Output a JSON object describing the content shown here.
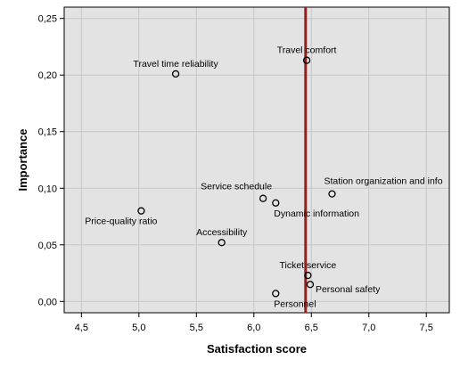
{
  "chart_data": {
    "type": "scatter",
    "title": "",
    "xlabel": "Satisfaction score",
    "ylabel": "Importance",
    "xlim": [
      4.35,
      7.7
    ],
    "ylim": [
      -0.01,
      0.26
    ],
    "x_ticks": [
      "4,5",
      "5,0",
      "5,5",
      "6,0",
      "6,5",
      "7,0",
      "7,5"
    ],
    "x_tick_values": [
      4.5,
      5.0,
      5.5,
      6.0,
      6.5,
      7.0,
      7.5
    ],
    "y_ticks": [
      "0,00",
      "0,05",
      "0,10",
      "0,15",
      "0,20",
      "0,25"
    ],
    "y_tick_values": [
      0.0,
      0.05,
      0.1,
      0.15,
      0.2,
      0.25
    ],
    "grid": true,
    "background_color": "#e3e3e3",
    "grid_color": "#c6c6c6",
    "reference_line": {
      "axis": "x",
      "value": 6.45,
      "color": "#9c1c1c"
    },
    "points": [
      {
        "label": "Travel comfort",
        "x": 6.46,
        "y": 0.213,
        "label_pos": "above"
      },
      {
        "label": "Travel time reliability",
        "x": 5.32,
        "y": 0.201,
        "label_pos": "above"
      },
      {
        "label": "Station organization and info",
        "x": 6.68,
        "y": 0.095,
        "label_pos": "above-right"
      },
      {
        "label": "Service schedule",
        "x": 6.08,
        "y": 0.091,
        "label_pos": "above-left"
      },
      {
        "label": "Dynamic information",
        "x": 6.19,
        "y": 0.087,
        "label_pos": "below-right"
      },
      {
        "label": "Price-quality ratio",
        "x": 5.02,
        "y": 0.08,
        "label_pos": "below-left"
      },
      {
        "label": "Accessibility",
        "x": 5.72,
        "y": 0.052,
        "label_pos": "above"
      },
      {
        "label": "Ticket service",
        "x": 6.47,
        "y": 0.023,
        "label_pos": "above"
      },
      {
        "label": "Personal safety",
        "x": 6.49,
        "y": 0.015,
        "label_pos": "right"
      },
      {
        "label": "Personnel",
        "x": 6.19,
        "y": 0.007,
        "label_pos": "below-right"
      }
    ]
  }
}
